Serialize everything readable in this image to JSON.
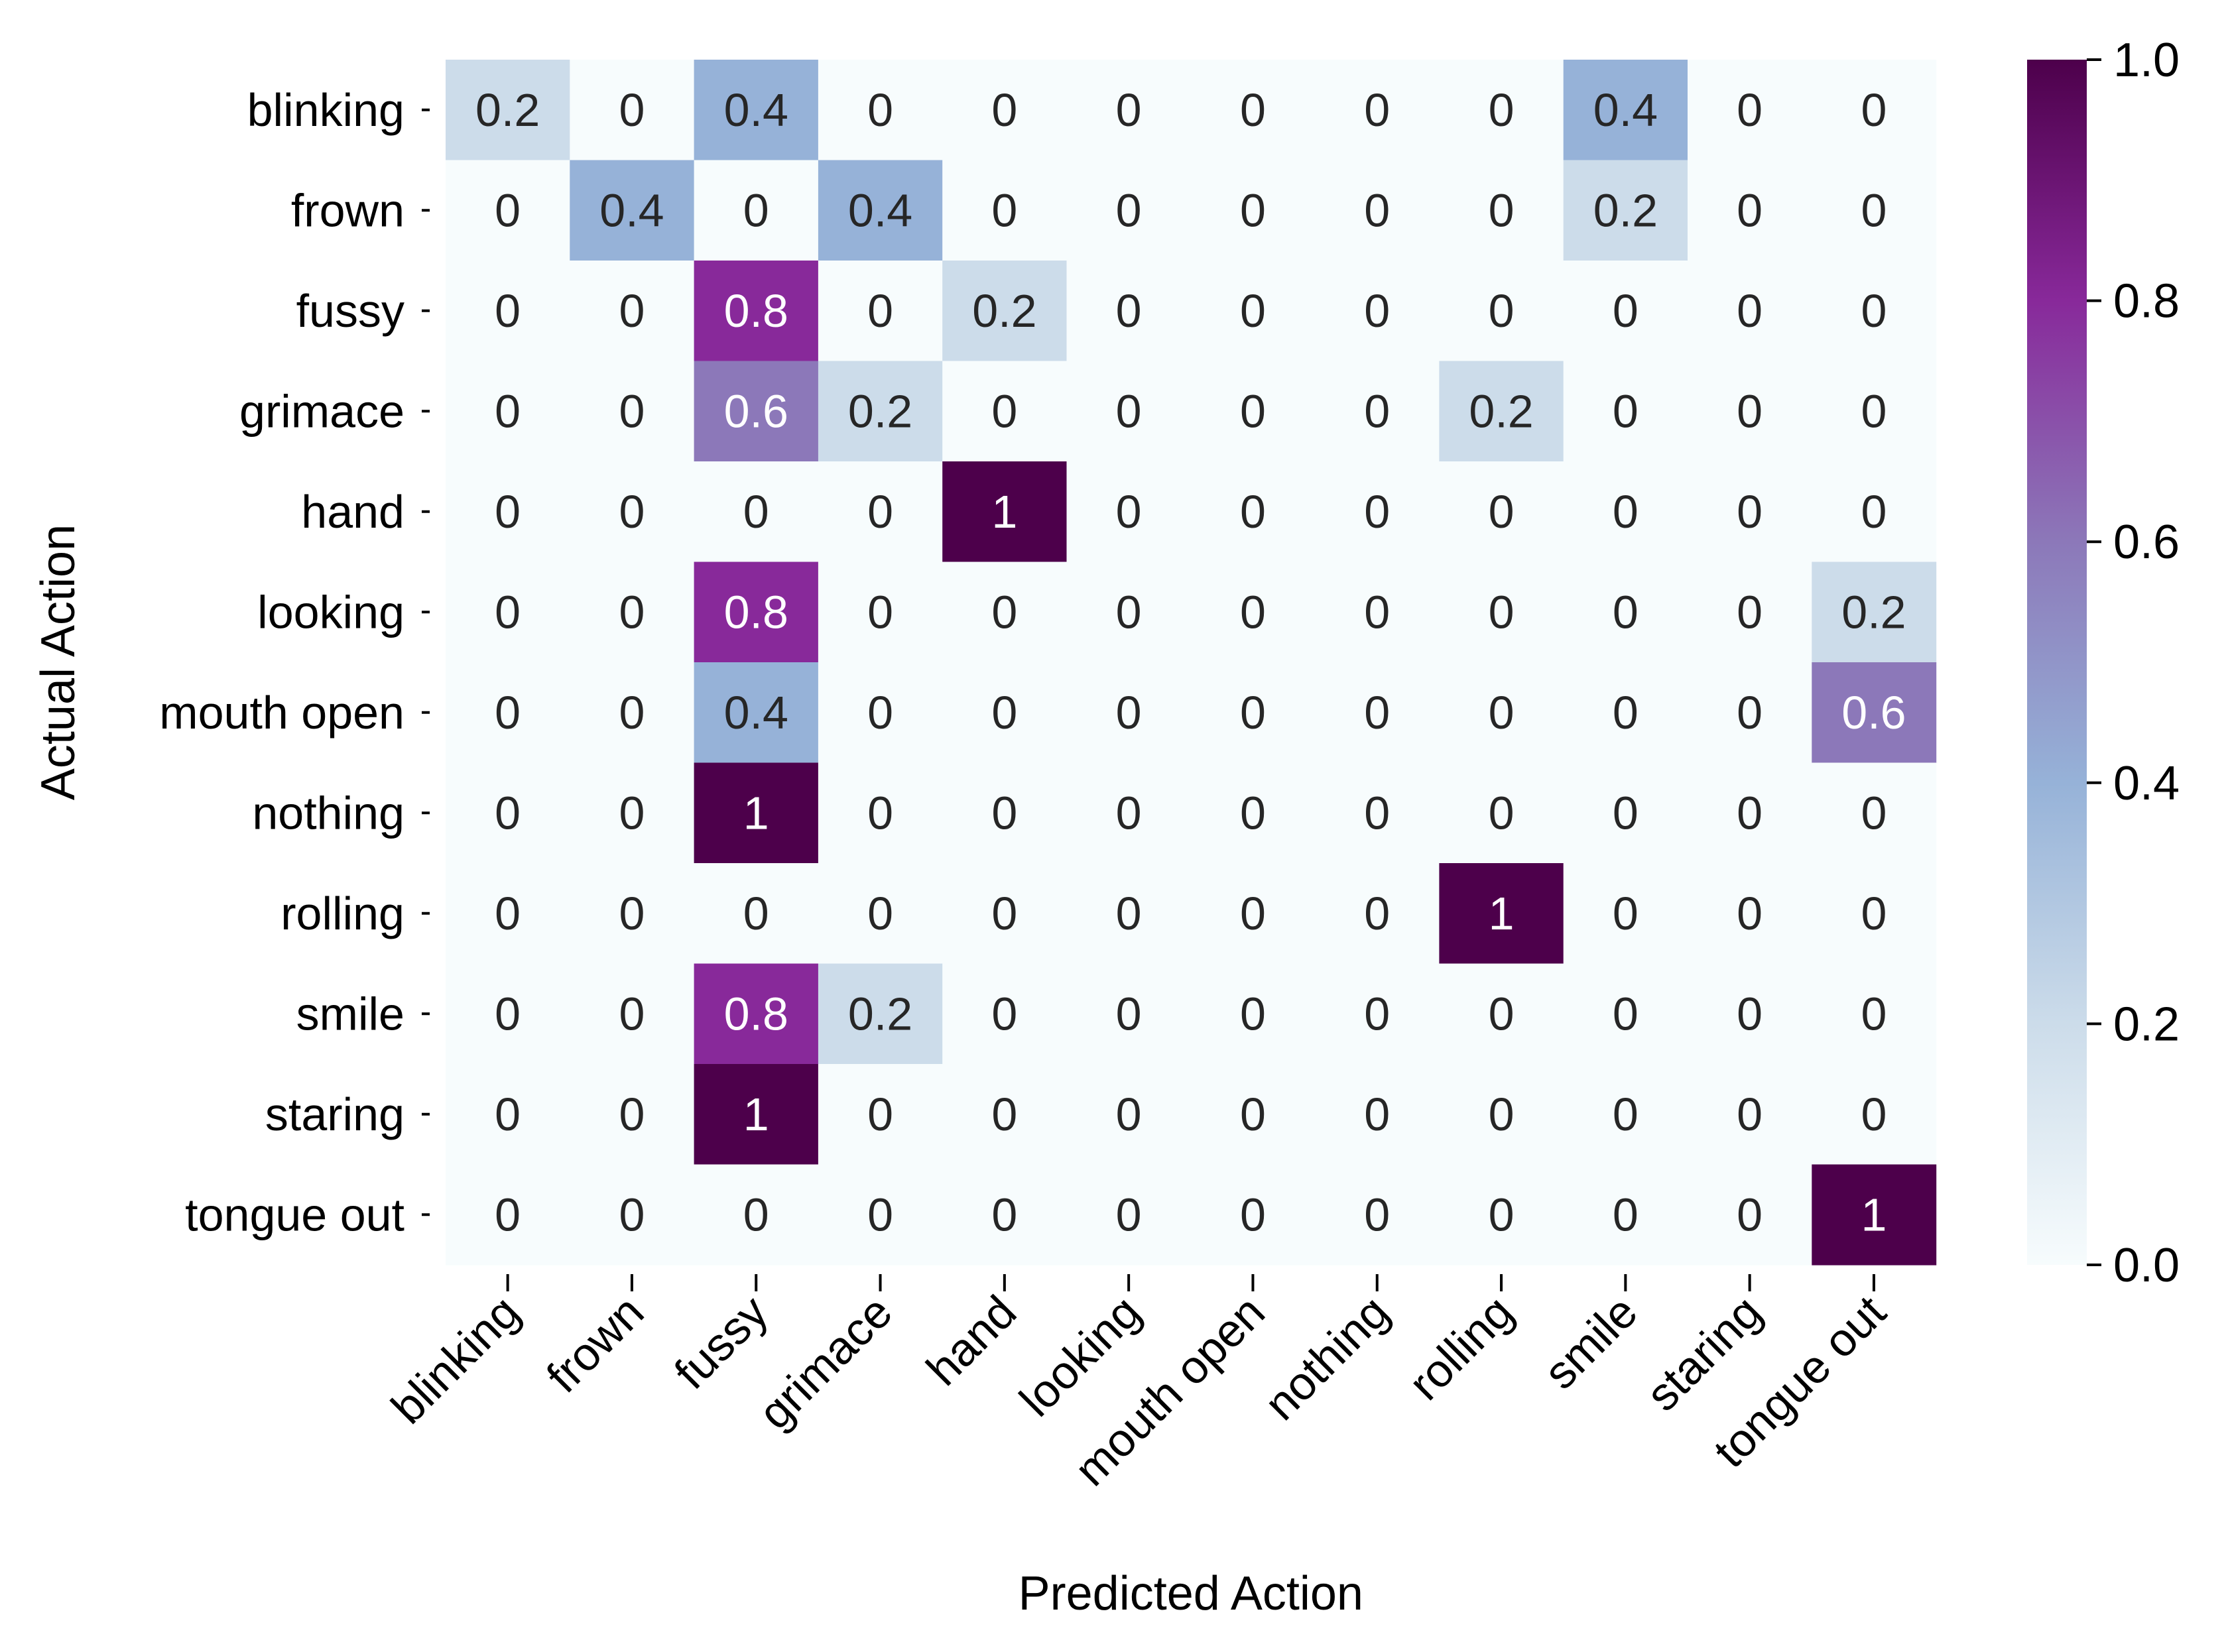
{
  "chart_data": {
    "type": "heatmap",
    "xlabel": "Predicted Action",
    "ylabel": "Actual Action",
    "x_categories": [
      "blinking",
      "frown",
      "fussy",
      "grimace",
      "hand",
      "looking",
      "mouth open",
      "nothing",
      "rolling",
      "smile",
      "staring",
      "tongue out"
    ],
    "y_categories": [
      "blinking",
      "frown",
      "fussy",
      "grimace",
      "hand",
      "looking",
      "mouth open",
      "nothing",
      "rolling",
      "smile",
      "staring",
      "tongue out"
    ],
    "values": [
      [
        0.2,
        0,
        0.4,
        0,
        0,
        0,
        0,
        0,
        0,
        0.4,
        0,
        0
      ],
      [
        0,
        0.4,
        0,
        0.4,
        0,
        0,
        0,
        0,
        0,
        0.2,
        0,
        0
      ],
      [
        0,
        0,
        0.8,
        0,
        0.2,
        0,
        0,
        0,
        0,
        0,
        0,
        0
      ],
      [
        0,
        0,
        0.6,
        0.2,
        0,
        0,
        0,
        0,
        0.2,
        0,
        0,
        0
      ],
      [
        0,
        0,
        0,
        0,
        1,
        0,
        0,
        0,
        0,
        0,
        0,
        0
      ],
      [
        0,
        0,
        0.8,
        0,
        0,
        0,
        0,
        0,
        0,
        0,
        0,
        0.2
      ],
      [
        0,
        0,
        0.4,
        0,
        0,
        0,
        0,
        0,
        0,
        0,
        0,
        0.6
      ],
      [
        0,
        0,
        1,
        0,
        0,
        0,
        0,
        0,
        0,
        0,
        0,
        0
      ],
      [
        0,
        0,
        0,
        0,
        0,
        0,
        0,
        0,
        1,
        0,
        0,
        0
      ],
      [
        0,
        0,
        0.8,
        0.2,
        0,
        0,
        0,
        0,
        0,
        0,
        0,
        0
      ],
      [
        0,
        0,
        1,
        0,
        0,
        0,
        0,
        0,
        0,
        0,
        0,
        0
      ],
      [
        0,
        0,
        0,
        0,
        0,
        0,
        0,
        0,
        0,
        0,
        0,
        1
      ]
    ],
    "cell_text": [
      [
        "0.2",
        "0",
        "0.4",
        "0",
        "0",
        "0",
        "0",
        "0",
        "0",
        "0.4",
        "0",
        "0"
      ],
      [
        "0",
        "0.4",
        "0",
        "0.4",
        "0",
        "0",
        "0",
        "0",
        "0",
        "0.2",
        "0",
        "0"
      ],
      [
        "0",
        "0",
        "0.8",
        "0",
        "0.2",
        "0",
        "0",
        "0",
        "0",
        "0",
        "0",
        "0"
      ],
      [
        "0",
        "0",
        "0.6",
        "0.2",
        "0",
        "0",
        "0",
        "0",
        "0.2",
        "0",
        "0",
        "0"
      ],
      [
        "0",
        "0",
        "0",
        "0",
        "1",
        "0",
        "0",
        "0",
        "0",
        "0",
        "0",
        "0"
      ],
      [
        "0",
        "0",
        "0.8",
        "0",
        "0",
        "0",
        "0",
        "0",
        "0",
        "0",
        "0",
        "0.2"
      ],
      [
        "0",
        "0",
        "0.4",
        "0",
        "0",
        "0",
        "0",
        "0",
        "0",
        "0",
        "0",
        "0.6"
      ],
      [
        "0",
        "0",
        "1",
        "0",
        "0",
        "0",
        "0",
        "0",
        "0",
        "0",
        "0",
        "0"
      ],
      [
        "0",
        "0",
        "0",
        "0",
        "0",
        "0",
        "0",
        "0",
        "1",
        "0",
        "0",
        "0"
      ],
      [
        "0",
        "0",
        "0.8",
        "0.2",
        "0",
        "0",
        "0",
        "0",
        "0",
        "0",
        "0",
        "0"
      ],
      [
        "0",
        "0",
        "1",
        "0",
        "0",
        "0",
        "0",
        "0",
        "0",
        "0",
        "0",
        "0"
      ],
      [
        "0",
        "0",
        "0",
        "0",
        "0",
        "0",
        "0",
        "0",
        "0",
        "0",
        "0",
        "1"
      ]
    ],
    "colorbar": {
      "range": [
        0.0,
        1.0
      ],
      "ticks": [
        0.0,
        0.2,
        0.4,
        0.6,
        0.8,
        1.0
      ],
      "tick_labels": [
        "0.0",
        "0.2",
        "0.4",
        "0.6",
        "0.8",
        "1.0"
      ],
      "placement": "right"
    },
    "colormap": {
      "name": "BuPu",
      "stops": [
        {
          "value": 0.0,
          "color": "#f7fcfd"
        },
        {
          "value": 0.2,
          "color": "#ccdcea"
        },
        {
          "value": 0.4,
          "color": "#96b2d8"
        },
        {
          "value": 0.6,
          "color": "#8c78b9"
        },
        {
          "value": 0.8,
          "color": "#88299a"
        },
        {
          "value": 1.0,
          "color": "#4d004b"
        }
      ]
    },
    "text_colors": {
      "light_cells": "#262626",
      "dark_cells": "#ffffff"
    },
    "grid": false
  }
}
